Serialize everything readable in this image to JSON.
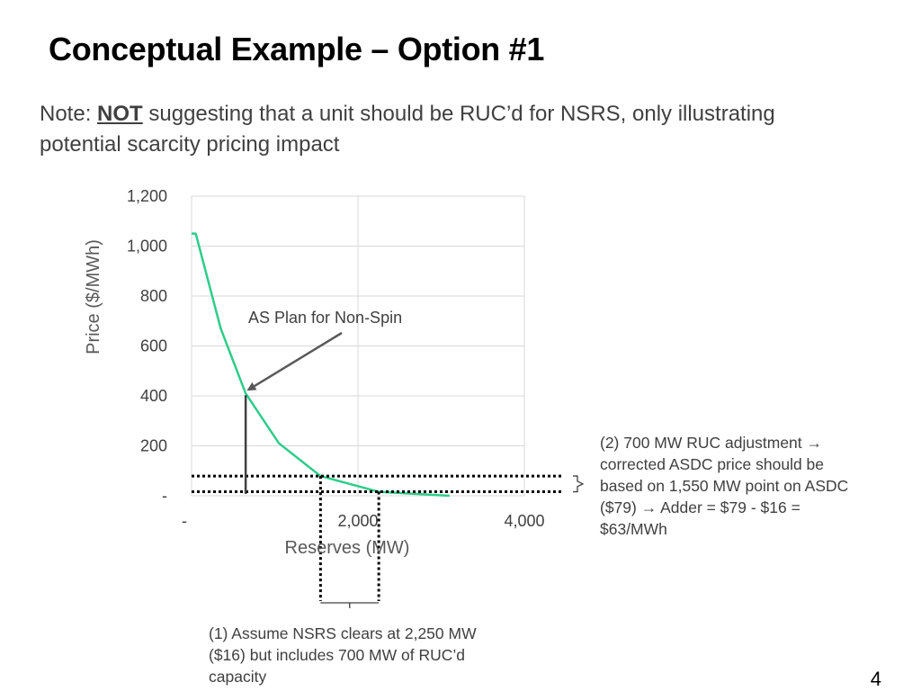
{
  "slide": {
    "title": "Conceptual Example – Option #1",
    "note_prefix": "Note: ",
    "note_emphasis": "NOT",
    "note_rest": " suggesting that a unit should be RUC’d for NSRS, only illustrating potential scarcity pricing impact",
    "page_number": "4"
  },
  "chart_data": {
    "type": "line",
    "title": "",
    "xlabel": "Reserves (MW)",
    "ylabel": "Price ($/MWh)",
    "xlim": [
      0,
      4000
    ],
    "ylim": [
      0,
      1200
    ],
    "x_ticks": [
      {
        "value": 0,
        "label": "-"
      },
      {
        "value": 2000,
        "label": "2,000"
      },
      {
        "value": 4000,
        "label": "4,000"
      }
    ],
    "y_ticks": [
      {
        "value": 0,
        "label": "-"
      },
      {
        "value": 200,
        "label": "200"
      },
      {
        "value": 400,
        "label": "400"
      },
      {
        "value": 600,
        "label": "600"
      },
      {
        "value": 800,
        "label": "800"
      },
      {
        "value": 1000,
        "label": "1,000"
      },
      {
        "value": 1200,
        "label": "1,200"
      }
    ],
    "grid": true,
    "series": [
      {
        "color": "#2ecc8a",
        "x": [
          0,
          50,
          350,
          650,
          1050,
          1550,
          2250,
          3100
        ],
        "y": [
          1050,
          1050,
          670,
          410,
          210,
          79,
          16,
          0
        ]
      }
    ],
    "annotations": {
      "as_plan": {
        "label": "AS Plan for Non-Spin",
        "point_x": 650,
        "point_y": 410
      },
      "nsrs_clear": {
        "x": 2250,
        "y": 16
      },
      "corrected_point": {
        "x": 1550,
        "y": 79
      }
    }
  },
  "callouts": {
    "right": "(2) 700 MW RUC adjustment → corrected ASDC price should be based on 1,550 MW point on ASDC ($79) → Adder = $79 - $16 = $63/MWh",
    "bottom": "(1) Assume NSRS clears at 2,250 MW ($16) but includes 700 MW of RUC’d capacity"
  },
  "colors": {
    "curve": "#2ecc8a",
    "grid": "#d9d9d9",
    "text": "#404040",
    "dotted_lines": "#000000",
    "arrow": "#595959"
  }
}
